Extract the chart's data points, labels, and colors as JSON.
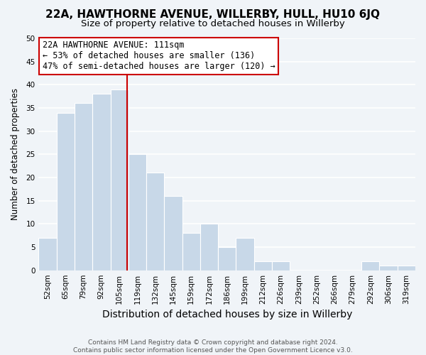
{
  "title": "22A, HAWTHORNE AVENUE, WILLERBY, HULL, HU10 6JQ",
  "subtitle": "Size of property relative to detached houses in Willerby",
  "xlabel": "Distribution of detached houses by size in Willerby",
  "ylabel": "Number of detached properties",
  "categories": [
    "52sqm",
    "65sqm",
    "79sqm",
    "92sqm",
    "105sqm",
    "119sqm",
    "132sqm",
    "145sqm",
    "159sqm",
    "172sqm",
    "186sqm",
    "199sqm",
    "212sqm",
    "226sqm",
    "239sqm",
    "252sqm",
    "266sqm",
    "279sqm",
    "292sqm",
    "306sqm",
    "319sqm"
  ],
  "values": [
    7,
    34,
    36,
    38,
    39,
    25,
    21,
    16,
    8,
    10,
    5,
    7,
    2,
    2,
    0,
    0,
    0,
    0,
    2,
    1,
    1
  ],
  "bar_color": "#c8d8e8",
  "bar_edge_color": "#aabbcc",
  "highlight_line_color": "#cc0000",
  "annotation_line1": "22A HAWTHORNE AVENUE: 111sqm",
  "annotation_line2": "← 53% of detached houses are smaller (136)",
  "annotation_line3": "47% of semi-detached houses are larger (120) →",
  "ylim": [
    0,
    50
  ],
  "yticks": [
    0,
    5,
    10,
    15,
    20,
    25,
    30,
    35,
    40,
    45,
    50
  ],
  "footer_line1": "Contains HM Land Registry data © Crown copyright and database right 2024.",
  "footer_line2": "Contains public sector information licensed under the Open Government Licence v3.0.",
  "background_color": "#f0f4f8",
  "grid_color": "#ffffff",
  "title_fontsize": 11,
  "subtitle_fontsize": 9.5,
  "xlabel_fontsize": 10,
  "ylabel_fontsize": 8.5,
  "tick_fontsize": 7.5,
  "footer_fontsize": 6.5
}
